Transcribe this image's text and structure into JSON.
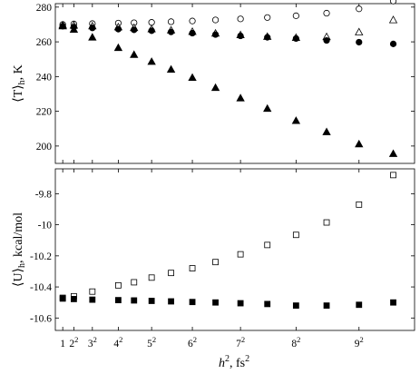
{
  "chart_data": [
    {
      "type": "scatter",
      "ylabel": "⟨T⟩h, K",
      "ylabel_parts": {
        "main": "⟨T⟩",
        "sub": "h",
        "tail": ", K"
      },
      "ylim": [
        190,
        282
      ],
      "yticks": [
        200,
        220,
        240,
        260,
        280
      ],
      "ytick_labels": [
        "200",
        "220",
        "240",
        "260",
        "280"
      ],
      "series": [
        {
          "marker": "circle-open",
          "x": [
            1,
            4,
            9,
            16,
            20.25,
            25,
            30.25,
            36,
            42.25,
            49,
            56.25,
            64,
            72.25,
            81,
            90.25
          ],
          "y": [
            270.0,
            270.3,
            270.5,
            270.8,
            271.0,
            271.2,
            271.6,
            272.0,
            272.6,
            273.2,
            274.0,
            275.0,
            276.5,
            279.0,
            283.5
          ]
        },
        {
          "marker": "triangle-open",
          "x": [
            1,
            4,
            9,
            16,
            20.25,
            25,
            30.25,
            36,
            42.25,
            49,
            56.25,
            64,
            72.25,
            81,
            90.25
          ],
          "y": [
            269.5,
            269.4,
            269.0,
            268.4,
            268.0,
            267.3,
            266.6,
            265.8,
            264.8,
            263.9,
            262.9,
            262.3,
            262.8,
            265.5,
            272.5
          ]
        },
        {
          "marker": "circle-filled",
          "x": [
            1,
            4,
            9,
            16,
            20.25,
            25,
            30.25,
            36,
            42.25,
            49,
            56.25,
            64,
            72.25,
            81,
            90.25
          ],
          "y": [
            269.0,
            268.5,
            268.0,
            267.3,
            266.9,
            266.4,
            265.7,
            265.0,
            264.2,
            263.4,
            262.6,
            261.9,
            260.8,
            259.8,
            258.8
          ]
        },
        {
          "marker": "triangle-filled",
          "x": [
            1,
            4,
            9,
            16,
            20.25,
            25,
            30.25,
            36,
            42.25,
            49,
            56.25,
            64,
            72.25,
            81,
            90.25
          ],
          "y": [
            269.0,
            267.0,
            262.5,
            256.5,
            252.5,
            248.5,
            244.0,
            239.3,
            233.5,
            227.5,
            221.5,
            214.5,
            208.0,
            201.0,
            195.5
          ]
        }
      ]
    },
    {
      "type": "scatter",
      "ylabel": "⟨U⟩h, kcal/mol",
      "ylabel_parts": {
        "main": "⟨U⟩",
        "sub": "h",
        "tail": ", kcal/mol"
      },
      "xlabel": "h2, fs2",
      "xlabel_parts": {
        "base": "h",
        "exp": "2",
        "mid": ", fs",
        "exp2": "2"
      },
      "xlim": [
        -1,
        96
      ],
      "ylim": [
        -10.68,
        -9.64
      ],
      "yticks": [
        -10.6,
        -10.4,
        -10.2,
        -10,
        -9.8
      ],
      "ytick_labels": [
        "-10.6",
        "-10.4",
        "-10.2",
        "-10",
        "-9.8"
      ],
      "xticks": [
        1,
        4,
        9,
        16,
        25,
        36,
        49,
        64,
        81
      ],
      "xtick_labels": [
        {
          "base": "1",
          "exp": ""
        },
        {
          "base": "2",
          "exp": "2"
        },
        {
          "base": "3",
          "exp": "2"
        },
        {
          "base": "4",
          "exp": "2"
        },
        {
          "base": "5",
          "exp": "2"
        },
        {
          "base": "6",
          "exp": "2"
        },
        {
          "base": "7",
          "exp": "2"
        },
        {
          "base": "8",
          "exp": "2"
        },
        {
          "base": "9",
          "exp": "2"
        }
      ],
      "series": [
        {
          "marker": "square-open",
          "x": [
            1,
            4,
            9,
            16,
            20.25,
            25,
            30.25,
            36,
            42.25,
            49,
            56.25,
            64,
            72.25,
            81,
            90.25
          ],
          "y": [
            -10.47,
            -10.46,
            -10.43,
            -10.39,
            -10.37,
            -10.34,
            -10.31,
            -10.28,
            -10.24,
            -10.19,
            -10.13,
            -10.065,
            -9.985,
            -9.87,
            -9.68
          ]
        },
        {
          "marker": "square-filled",
          "x": [
            1,
            4,
            9,
            16,
            20.25,
            25,
            30.25,
            36,
            42.25,
            49,
            56.25,
            64,
            72.25,
            81,
            90.25
          ],
          "y": [
            -10.475,
            -10.478,
            -10.482,
            -10.485,
            -10.487,
            -10.49,
            -10.493,
            -10.497,
            -10.5,
            -10.505,
            -10.51,
            -10.52,
            -10.52,
            -10.515,
            -10.5
          ]
        }
      ]
    }
  ]
}
